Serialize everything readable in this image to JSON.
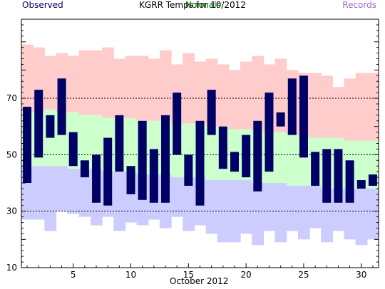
{
  "chart_data": {
    "type": "bar",
    "title": "KGRR Temps for 10/2012",
    "xlabel": "October 2012",
    "ylabel": "",
    "xlim": [
      0.5,
      31.5
    ],
    "ylim": [
      10,
      98
    ],
    "x_ticks": [
      5,
      10,
      15,
      20,
      25,
      30
    ],
    "y_ticks": [
      10,
      30,
      50,
      70
    ],
    "grid_y": [
      30,
      50,
      70
    ],
    "legend": {
      "observed": "Observed",
      "normals": "Normals",
      "records": "Records",
      "placement": "top"
    },
    "colors": {
      "observed": "#000066",
      "normals_band": "#ccffcc",
      "normals_text": "#006600",
      "record_high_band": "#ffcccc",
      "record_low_band": "#ccccff",
      "records_text": "#9966cc"
    },
    "days": [
      1,
      2,
      3,
      4,
      5,
      6,
      7,
      8,
      9,
      10,
      11,
      12,
      13,
      14,
      15,
      16,
      17,
      18,
      19,
      20,
      21,
      22,
      23,
      24,
      25,
      26,
      27,
      28,
      29,
      30,
      31
    ],
    "record_high": [
      89,
      88,
      85,
      86,
      85,
      87,
      87,
      88,
      84,
      85,
      85,
      84,
      87,
      82,
      86,
      83,
      84,
      82,
      80,
      83,
      85,
      82,
      84,
      80,
      79,
      79,
      78,
      74,
      77,
      79,
      79
    ],
    "normal_high": [
      65,
      65,
      66,
      65,
      65,
      64,
      64,
      63,
      63,
      63,
      62,
      62,
      62,
      61,
      61,
      61,
      60,
      60,
      59,
      59,
      59,
      58,
      58,
      57,
      57,
      56,
      56,
      56,
      55,
      55,
      55
    ],
    "normal_low": [
      46,
      46,
      46,
      46,
      45,
      45,
      45,
      44,
      44,
      44,
      43,
      43,
      43,
      42,
      42,
      42,
      41,
      41,
      41,
      41,
      40,
      40,
      40,
      39,
      39,
      39,
      38,
      38,
      38,
      38,
      38
    ],
    "record_low": [
      27,
      27,
      23,
      30,
      29,
      28,
      25,
      28,
      23,
      26,
      25,
      27,
      24,
      28,
      23,
      25,
      22,
      19,
      19,
      22,
      18,
      23,
      19,
      23,
      20,
      24,
      19,
      23,
      20,
      18,
      20
    ],
    "observed_high": [
      67,
      73,
      64,
      77,
      58,
      48,
      50,
      56,
      64,
      46,
      62,
      52,
      64,
      72,
      50,
      62,
      73,
      60,
      51,
      57,
      62,
      72,
      65,
      77,
      78,
      51,
      52,
      52,
      48,
      41,
      43
    ],
    "observed_low": [
      40,
      49,
      56,
      57,
      46,
      42,
      33,
      32,
      44,
      36,
      34,
      33,
      33,
      50,
      39,
      32,
      57,
      45,
      44,
      42,
      37,
      44,
      60,
      57,
      49,
      39,
      33,
      33,
      33,
      38,
      39
    ]
  }
}
